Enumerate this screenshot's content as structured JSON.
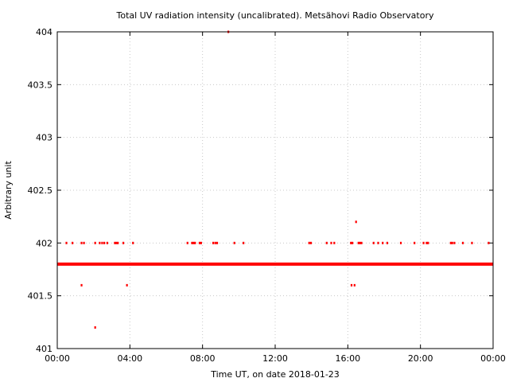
{
  "chart_data": {
    "type": "scatter",
    "title": "Total UV radiation intensity (uncalibrated). Metsähovi Radio Observatory",
    "xlabel": "Time UT, on date 2018-01-23",
    "ylabel": "Arbitrary unit",
    "xlim": [
      "00:00",
      "24:00"
    ],
    "ylim": [
      401,
      404
    ],
    "x_ticks": [
      "00:00",
      "04:00",
      "08:00",
      "12:00",
      "16:00",
      "20:00",
      "00:00"
    ],
    "y_ticks": [
      "401",
      "401.5",
      "402",
      "402.5",
      "403",
      "403.5",
      "404"
    ],
    "grid": true,
    "legend": "none",
    "marker_color": "#ff0000",
    "series": [
      {
        "baseline_value": 401.8,
        "baseline_range": [
          "00:00",
          "24:00"
        ],
        "points": [
          {
            "x": "00:30",
            "y": 402.0
          },
          {
            "x": "00:50",
            "y": 402.0
          },
          {
            "x": "01:20",
            "y": 402.0
          },
          {
            "x": "01:28",
            "y": 402.0
          },
          {
            "x": "02:05",
            "y": 402.0
          },
          {
            "x": "02:20",
            "y": 402.0
          },
          {
            "x": "02:28",
            "y": 402.0
          },
          {
            "x": "02:35",
            "y": 402.0
          },
          {
            "x": "02:45",
            "y": 402.0
          },
          {
            "x": "03:10",
            "y": 402.0
          },
          {
            "x": "03:15",
            "y": 402.0
          },
          {
            "x": "03:20",
            "y": 402.0
          },
          {
            "x": "03:38",
            "y": 402.0
          },
          {
            "x": "04:10",
            "y": 402.0
          },
          {
            "x": "07:10",
            "y": 402.0
          },
          {
            "x": "07:25",
            "y": 402.0
          },
          {
            "x": "07:30",
            "y": 402.0
          },
          {
            "x": "07:35",
            "y": 402.0
          },
          {
            "x": "07:50",
            "y": 402.0
          },
          {
            "x": "07:55",
            "y": 402.0
          },
          {
            "x": "08:35",
            "y": 402.0
          },
          {
            "x": "08:42",
            "y": 402.0
          },
          {
            "x": "08:48",
            "y": 402.0
          },
          {
            "x": "09:45",
            "y": 402.0
          },
          {
            "x": "10:15",
            "y": 402.0
          },
          {
            "x": "13:52",
            "y": 402.0
          },
          {
            "x": "13:58",
            "y": 402.0
          },
          {
            "x": "14:50",
            "y": 402.0
          },
          {
            "x": "15:05",
            "y": 402.0
          },
          {
            "x": "15:15",
            "y": 402.0
          },
          {
            "x": "16:10",
            "y": 402.0
          },
          {
            "x": "16:15",
            "y": 402.0
          },
          {
            "x": "16:35",
            "y": 402.0
          },
          {
            "x": "16:40",
            "y": 402.0
          },
          {
            "x": "16:45",
            "y": 402.0
          },
          {
            "x": "17:25",
            "y": 402.0
          },
          {
            "x": "17:40",
            "y": 402.0
          },
          {
            "x": "17:55",
            "y": 402.0
          },
          {
            "x": "18:10",
            "y": 402.0
          },
          {
            "x": "18:55",
            "y": 402.0
          },
          {
            "x": "19:40",
            "y": 402.0
          },
          {
            "x": "20:10",
            "y": 402.0
          },
          {
            "x": "20:20",
            "y": 402.0
          },
          {
            "x": "20:25",
            "y": 402.0
          },
          {
            "x": "21:40",
            "y": 402.0
          },
          {
            "x": "21:45",
            "y": 402.0
          },
          {
            "x": "21:52",
            "y": 402.0
          },
          {
            "x": "22:20",
            "y": 402.0
          },
          {
            "x": "22:50",
            "y": 402.0
          },
          {
            "x": "23:45",
            "y": 402.0
          },
          {
            "x": "16:27",
            "y": 402.2
          },
          {
            "x": "01:20",
            "y": 401.6
          },
          {
            "x": "03:50",
            "y": 401.6
          },
          {
            "x": "16:12",
            "y": 401.6
          },
          {
            "x": "16:22",
            "y": 401.6
          },
          {
            "x": "02:05",
            "y": 401.2
          },
          {
            "x": "09:25",
            "y": 404.0
          }
        ]
      }
    ]
  }
}
